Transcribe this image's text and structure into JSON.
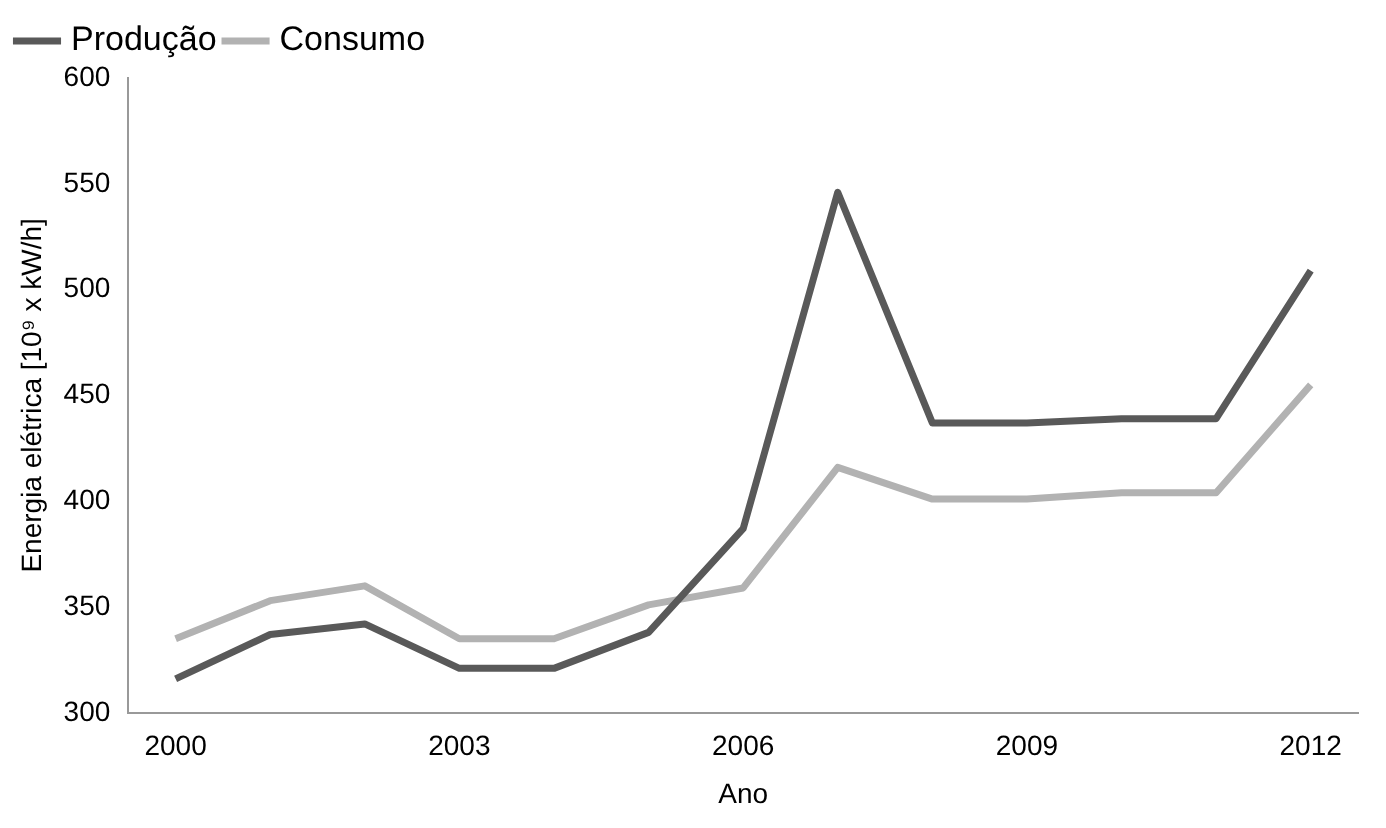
{
  "chart_data": {
    "type": "line",
    "xlabel": "Ano",
    "ylabel": "Energia elétrica [10⁹ x kW/h]",
    "categories": [
      "2000",
      null,
      null,
      "2003",
      null,
      null,
      "2006",
      null,
      null,
      "2009",
      null,
      null,
      "2012"
    ],
    "series": [
      {
        "name": "Produção",
        "color": "#595959",
        "values": [
          316,
          337,
          342,
          321,
          321,
          338,
          387,
          546,
          437,
          437,
          439,
          439,
          509
        ]
      },
      {
        "name": "Consumo",
        "color": "#b2b2b2",
        "values": [
          335,
          353,
          360,
          335,
          335,
          351,
          359,
          416,
          401,
          401,
          404,
          404,
          455
        ]
      }
    ],
    "ylim": [
      300,
      600
    ],
    "yticks": [
      300,
      350,
      400,
      450,
      500,
      550,
      600
    ],
    "grid": false,
    "legend": "top left",
    "marker": "none",
    "line_style": "solid"
  }
}
